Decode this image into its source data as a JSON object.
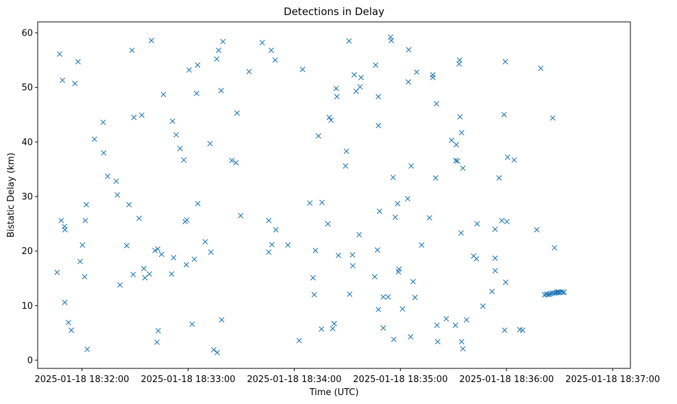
{
  "chart_data": {
    "type": "scatter",
    "title": "Detections in Delay",
    "xlabel": "Time (UTC)",
    "ylabel": "Bistatic Delay (km)",
    "x_unit": "seconds since 2025-01-18 18:32:00",
    "xlim": [
      -25,
      310
    ],
    "ylim": [
      -1.5,
      62
    ],
    "xticks": [
      {
        "value": 0,
        "label": "2025-01-18 18:32:00"
      },
      {
        "value": 60,
        "label": "2025-01-18 18:33:00"
      },
      {
        "value": 120,
        "label": "2025-01-18 18:34:00"
      },
      {
        "value": 180,
        "label": "2025-01-18 18:35:00"
      },
      {
        "value": 240,
        "label": "2025-01-18 18:36:00"
      },
      {
        "value": 300,
        "label": "2025-01-18 18:37:00"
      }
    ],
    "yticks": [
      0,
      10,
      20,
      30,
      40,
      50,
      60
    ],
    "marker": "x",
    "color": "#1f77b4",
    "grid": false,
    "series": [
      {
        "name": "detections",
        "points": [
          [
            -14,
            16.1
          ],
          [
            -12.6,
            56.1
          ],
          [
            -11.7,
            25.6
          ],
          [
            -11,
            51.3
          ],
          [
            -9.8,
            24.5
          ],
          [
            -9.6,
            23.9
          ],
          [
            -9.7,
            10.6
          ],
          [
            -7.6,
            6.9
          ],
          [
            -6,
            5.5
          ],
          [
            -4,
            50.7
          ],
          [
            -2.2,
            54.7
          ],
          [
            -1,
            18.1
          ],
          [
            0.3,
            21.1
          ],
          [
            1.5,
            15.3
          ],
          [
            1.9,
            25.6
          ],
          [
            2.5,
            28.5
          ],
          [
            3,
            2
          ],
          [
            7.1,
            40.5
          ],
          [
            12,
            43.6
          ],
          [
            12.3,
            38
          ],
          [
            14.5,
            33.7
          ],
          [
            19.4,
            32.8
          ],
          [
            20,
            30.3
          ],
          [
            21.5,
            13.8
          ],
          [
            25.3,
            21
          ],
          [
            26.6,
            28.5
          ],
          [
            28.3,
            56.8
          ],
          [
            29,
            15.7
          ],
          [
            29.4,
            44.5
          ],
          [
            32.3,
            26
          ],
          [
            33.8,
            44.9
          ],
          [
            35,
            16.8
          ],
          [
            35.6,
            15.1
          ],
          [
            38.1,
            15.8
          ],
          [
            39.3,
            58.6
          ],
          [
            41.3,
            20.1
          ],
          [
            42.4,
            3.3
          ],
          [
            42.9,
            20.4
          ],
          [
            43.1,
            5.4
          ],
          [
            45,
            19.4
          ],
          [
            46.1,
            48.7
          ],
          [
            50.7,
            15.8
          ],
          [
            51.2,
            43.8
          ],
          [
            51.8,
            18.8
          ],
          [
            53.3,
            41.3
          ],
          [
            55.5,
            38.8
          ],
          [
            57.6,
            36.7
          ],
          [
            58.3,
            25.4
          ],
          [
            59,
            17.5
          ],
          [
            59.3,
            25.7
          ],
          [
            60.6,
            53.2
          ],
          [
            62.3,
            6.6
          ],
          [
            63.5,
            18.5
          ],
          [
            64.8,
            48.9
          ],
          [
            65.4,
            54.1
          ],
          [
            65.5,
            28.7
          ],
          [
            69.7,
            21.7
          ],
          [
            72.4,
            39.7
          ],
          [
            72.9,
            19.8
          ],
          [
            74.5,
            1.9
          ],
          [
            76.2,
            55.2
          ],
          [
            76.5,
            1.4
          ],
          [
            77.3,
            56.8
          ],
          [
            78.7,
            49.4
          ],
          [
            79,
            7.4
          ],
          [
            79.7,
            58.4
          ],
          [
            84.7,
            36.6
          ],
          [
            87.1,
            36.2
          ],
          [
            87.7,
            45.3
          ],
          [
            89.7,
            26.5
          ],
          [
            94.5,
            52.9
          ],
          [
            101.9,
            58.2
          ],
          [
            105.6,
            19.8
          ],
          [
            105.6,
            25.6
          ],
          [
            107,
            56.8
          ],
          [
            107.4,
            21.2
          ],
          [
            109.2,
            55
          ],
          [
            109.6,
            23.9
          ],
          [
            116.4,
            21.1
          ],
          [
            122.8,
            3.6
          ],
          [
            124.7,
            53.3
          ],
          [
            128.8,
            28.8
          ],
          [
            130.6,
            15.1
          ],
          [
            131.3,
            12
          ],
          [
            132,
            20.1
          ],
          [
            133.7,
            41.1
          ],
          [
            135.4,
            5.7
          ],
          [
            135.7,
            28.9
          ],
          [
            139,
            25
          ],
          [
            139.8,
            44.5
          ],
          [
            140.8,
            44
          ],
          [
            141.7,
            5.8
          ],
          [
            142.6,
            6.7
          ],
          [
            143.7,
            49.8
          ],
          [
            144.1,
            48.3
          ],
          [
            145,
            19.2
          ],
          [
            149,
            35.6
          ],
          [
            149.5,
            38.3
          ],
          [
            151,
            58.5
          ],
          [
            151.3,
            12.1
          ],
          [
            152.9,
            19.3
          ],
          [
            153.1,
            17.3
          ],
          [
            153.9,
            52.3
          ],
          [
            155,
            49.3
          ],
          [
            156.7,
            23
          ],
          [
            157.2,
            50.1
          ],
          [
            157.8,
            51.8
          ],
          [
            165.5,
            15.3
          ],
          [
            166,
            54.1
          ],
          [
            167,
            20.2
          ],
          [
            167.5,
            48.3
          ],
          [
            167.6,
            43
          ],
          [
            167.6,
            9.3
          ],
          [
            168.2,
            27.3
          ],
          [
            170.3,
            11.6
          ],
          [
            170.3,
            5.9
          ],
          [
            173.1,
            11.6
          ],
          [
            174.4,
            59.2
          ],
          [
            174.9,
            58.6
          ],
          [
            175.9,
            33.5
          ],
          [
            176.3,
            3.8
          ],
          [
            177.1,
            26.2
          ],
          [
            178.4,
            28.7
          ],
          [
            178.9,
            16.2
          ],
          [
            179.2,
            16.7
          ],
          [
            181.2,
            9.4
          ],
          [
            184.1,
            29.6
          ],
          [
            184.5,
            51
          ],
          [
            184.7,
            56.9
          ],
          [
            186.1,
            35.6
          ],
          [
            185.8,
            4.3
          ],
          [
            187.2,
            14.4
          ],
          [
            188.2,
            11.5
          ],
          [
            189.2,
            52.8
          ],
          [
            192,
            21.1
          ],
          [
            196.4,
            26.1
          ],
          [
            198.3,
            52.3
          ],
          [
            198.3,
            51.8
          ],
          [
            199.9,
            33.4
          ],
          [
            200.4,
            47
          ],
          [
            200.7,
            6.4
          ],
          [
            201.1,
            3.4
          ],
          [
            205.9,
            7.6
          ],
          [
            208.9,
            40.3
          ],
          [
            211.1,
            6.4
          ],
          [
            211.3,
            36.6
          ],
          [
            211.6,
            39.5
          ],
          [
            212.2,
            36.5
          ],
          [
            213.2,
            54.3
          ],
          [
            213.5,
            55
          ],
          [
            213.7,
            44.6
          ],
          [
            214.3,
            23.3
          ],
          [
            214.6,
            41.7
          ],
          [
            214.6,
            3.4
          ],
          [
            215.3,
            35.2
          ],
          [
            215.3,
            2.1
          ],
          [
            217.4,
            7.4
          ],
          [
            221.4,
            19.1
          ],
          [
            223,
            18.6
          ],
          [
            223.4,
            25
          ],
          [
            226.6,
            9.9
          ],
          [
            231.8,
            12.6
          ],
          [
            233.5,
            18.7
          ],
          [
            233.5,
            24
          ],
          [
            233.6,
            16.4
          ],
          [
            235.8,
            33.4
          ],
          [
            237.3,
            25.6
          ],
          [
            238.6,
            45
          ],
          [
            238.9,
            5.5
          ],
          [
            239.3,
            54.7
          ],
          [
            239.5,
            14.3
          ],
          [
            240.2,
            25.4
          ],
          [
            240.6,
            37.2
          ],
          [
            244.3,
            36.7
          ],
          [
            247.5,
            5.6
          ],
          [
            249.1,
            5.5
          ],
          [
            257.1,
            23.9
          ],
          [
            259.3,
            53.5
          ],
          [
            264.2,
            12.1
          ],
          [
            266.1,
            44.4
          ],
          [
            267.1,
            20.6
          ],
          [
            261.5,
            12
          ],
          [
            262.5,
            12.1
          ],
          [
            263.5,
            12
          ],
          [
            265,
            12.2
          ],
          [
            266,
            12.3
          ],
          [
            267,
            12.3
          ],
          [
            268,
            12.4
          ],
          [
            268.4,
            12.4
          ],
          [
            269,
            12.5
          ],
          [
            269.5,
            12.5
          ],
          [
            270,
            12.4
          ],
          [
            271,
            12.5
          ],
          [
            272,
            12.4
          ],
          [
            272.5,
            12.5
          ]
        ]
      }
    ]
  }
}
